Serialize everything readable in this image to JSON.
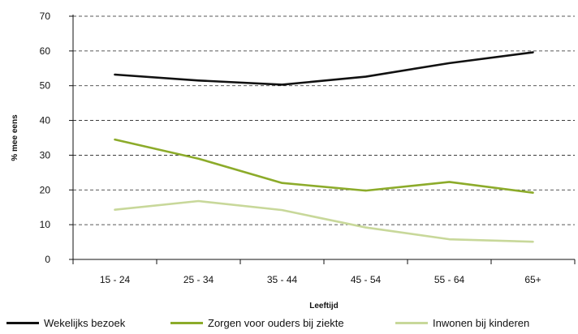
{
  "chart_data": {
    "type": "line",
    "title": "",
    "xlabel": "Leeftijd",
    "ylabel": "% mee eens",
    "categories": [
      "15 - 24",
      "25 - 34",
      "35 - 44",
      "45 - 54",
      "55 - 64",
      "65+"
    ],
    "ylim": [
      0,
      70
    ],
    "yticks": [
      0,
      10,
      20,
      30,
      40,
      50,
      60,
      70
    ],
    "grid": "horizontal dashed",
    "legend_position": "bottom",
    "series": [
      {
        "name": "Wekelijks bezoek",
        "color": "#111111",
        "values": [
          53.2,
          51.5,
          50.3,
          52.6,
          56.5,
          59.6
        ]
      },
      {
        "name": "Zorgen voor ouders bij ziekte",
        "color": "#8cab2a",
        "values": [
          34.5,
          29.0,
          22.0,
          19.8,
          22.3,
          19.2
        ]
      },
      {
        "name": "Inwonen bij kinderen",
        "color": "#c8d89a",
        "values": [
          14.3,
          16.8,
          14.2,
          9.2,
          5.8,
          5.1
        ]
      }
    ]
  }
}
